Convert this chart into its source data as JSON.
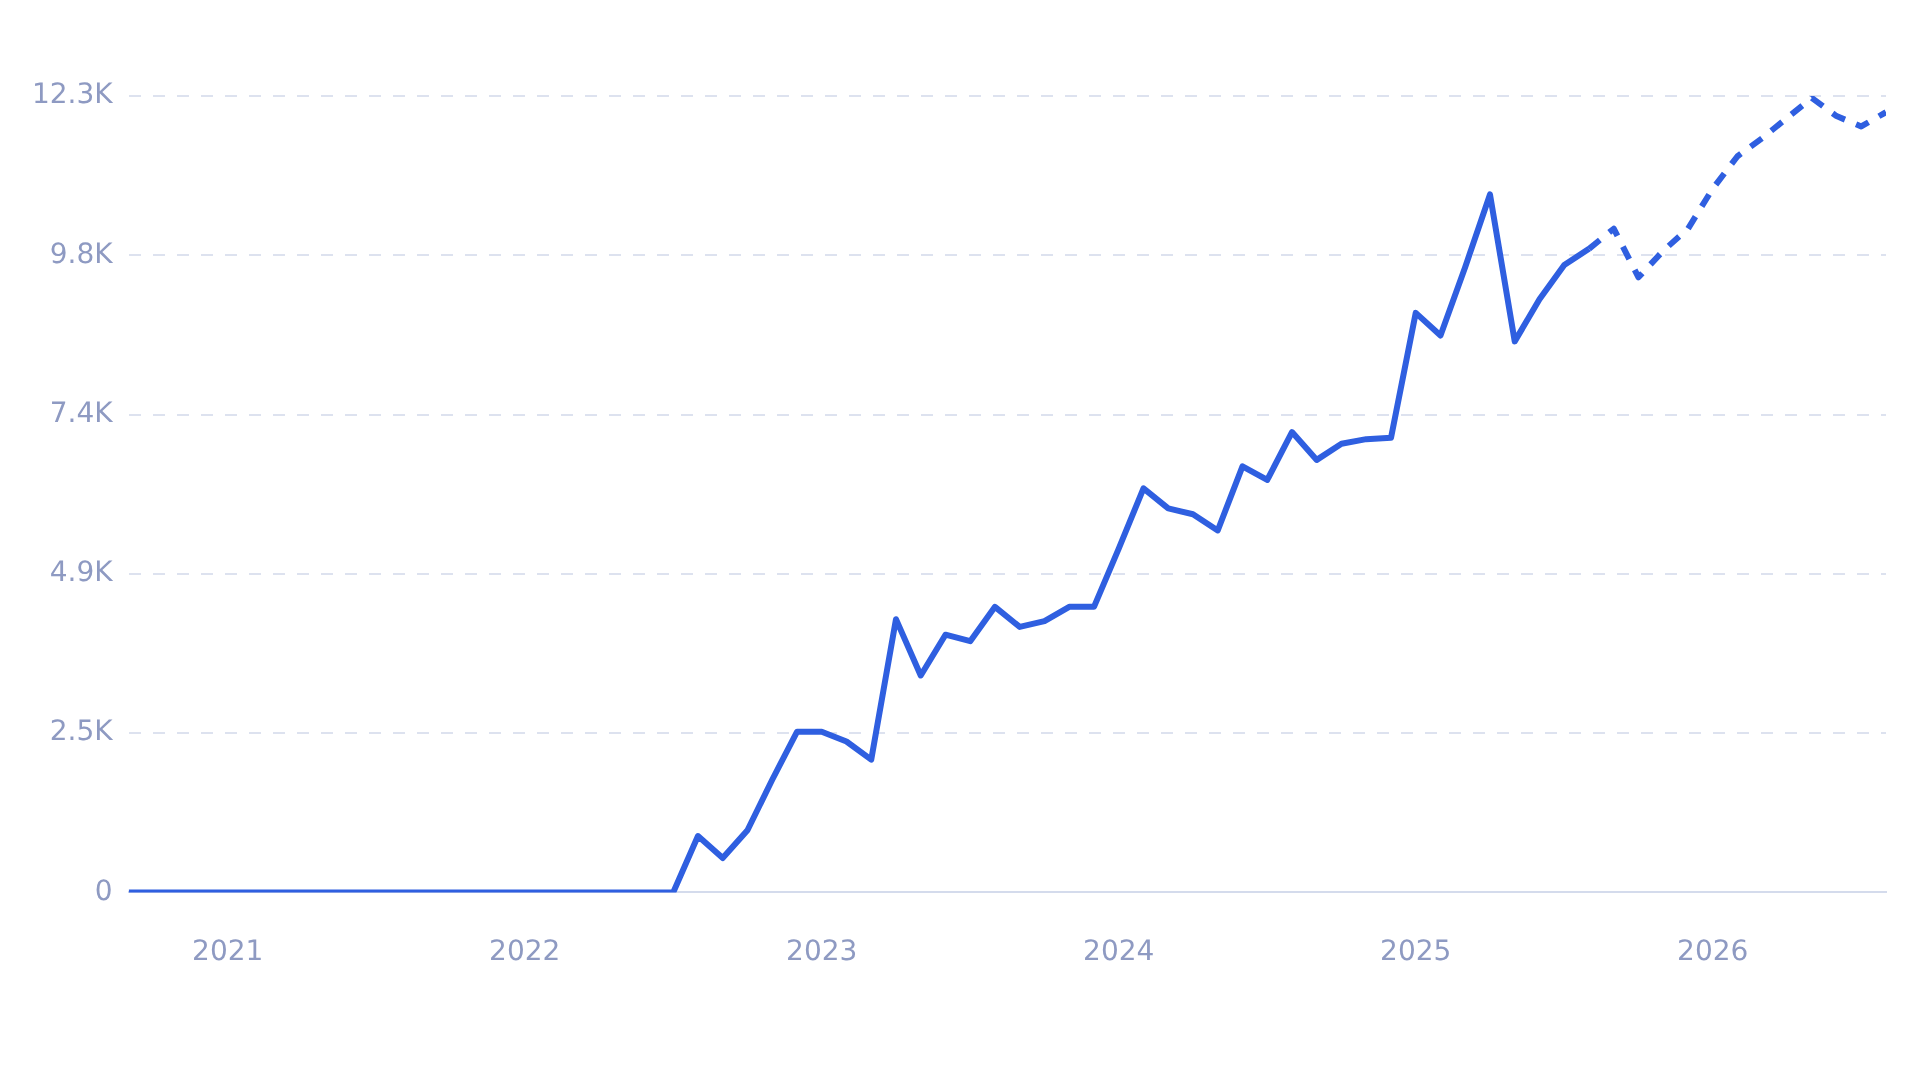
{
  "chart_data": {
    "type": "line",
    "xlim": [
      "2020-09",
      "2026-08"
    ],
    "xticks": [
      "2021",
      "2022",
      "2023",
      "2024",
      "2025",
      "2026"
    ],
    "ylim": [
      0,
      12300
    ],
    "yticks": [
      0,
      {
        "value": 2460,
        "label": "2.5K"
      },
      {
        "value": 4920,
        "label": "4.9K"
      },
      {
        "value": 7380,
        "label": "7.4K"
      },
      {
        "value": 9840,
        "label": "9.8K"
      },
      {
        "value": 12300,
        "label": "12.3K"
      }
    ],
    "grid": "y",
    "legend": false,
    "marker": "none",
    "series": [
      {
        "color": "#2f5fe0",
        "line_style": "solid",
        "x": [
          "2020-09",
          "2020-10",
          "2020-11",
          "2020-12",
          "2021-01",
          "2021-02",
          "2021-03",
          "2021-04",
          "2021-05",
          "2021-06",
          "2021-07",
          "2021-08",
          "2021-09",
          "2021-10",
          "2021-11",
          "2021-12",
          "2022-01",
          "2022-02",
          "2022-03",
          "2022-04",
          "2022-05",
          "2022-06",
          "2022-07",
          "2022-08",
          "2022-09",
          "2022-10",
          "2022-11",
          "2022-12",
          "2023-01",
          "2023-02",
          "2023-03",
          "2023-04",
          "2023-05",
          "2023-06",
          "2023-07",
          "2023-08",
          "2023-09",
          "2023-10",
          "2023-11",
          "2023-12",
          "2024-01",
          "2024-02",
          "2024-03",
          "2024-04",
          "2024-05",
          "2024-06",
          "2024-07",
          "2024-08",
          "2024-09",
          "2024-10",
          "2024-11",
          "2024-12",
          "2025-01",
          "2025-02",
          "2025-03",
          "2025-04",
          "2025-05",
          "2025-06",
          "2025-07",
          "2025-08"
        ],
        "values": [
          0,
          0,
          0,
          0,
          0,
          0,
          0,
          0,
          0,
          0,
          0,
          0,
          0,
          0,
          0,
          0,
          0,
          0,
          0,
          0,
          0,
          0,
          0,
          870,
          530,
          960,
          1740,
          2480,
          2480,
          2330,
          2050,
          4220,
          3350,
          3980,
          3880,
          4410,
          4100,
          4190,
          4410,
          4410,
          5310,
          6240,
          5930,
          5840,
          5590,
          6580,
          6370,
          7110,
          6680,
          6930,
          7000,
          7020,
          8950,
          8600,
          9660,
          10780,
          8510,
          9160,
          9690,
          9940
        ]
      },
      {
        "color": "#2f5fe0",
        "line_style": "dashed",
        "x": [
          "2025-08",
          "2025-09",
          "2025-10",
          "2025-11",
          "2025-12",
          "2026-01",
          "2026-02",
          "2026-03",
          "2026-04",
          "2026-05",
          "2026-06",
          "2026-07",
          "2026-08"
        ],
        "values": [
          9940,
          10250,
          9500,
          9910,
          10250,
          10870,
          11370,
          11650,
          11960,
          12270,
          11990,
          11830,
          12050
        ]
      }
    ]
  }
}
